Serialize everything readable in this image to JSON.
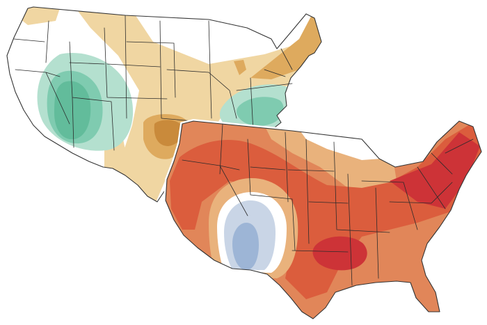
{
  "maps": [
    {
      "id": "precipitation-map",
      "palette": {
        "base": "#ffffff",
        "dry_light": "#f0d6a2",
        "dry_mid": "#deaa5e",
        "dry_dark": "#c98a3b",
        "wet_light": "#b4e0cf",
        "wet_mid": "#7fcbb0",
        "wet_dark": "#62bc9b"
      }
    },
    {
      "id": "temperature-map",
      "palette": {
        "base": "#ffffff",
        "warm_light": "#e9b27c",
        "warm_mid": "#e18659",
        "warm_strong": "#db5d3d",
        "warm_dark": "#cd3337",
        "cool_light": "#c9d5e6",
        "cool_mid": "#9db5d6"
      }
    }
  ]
}
